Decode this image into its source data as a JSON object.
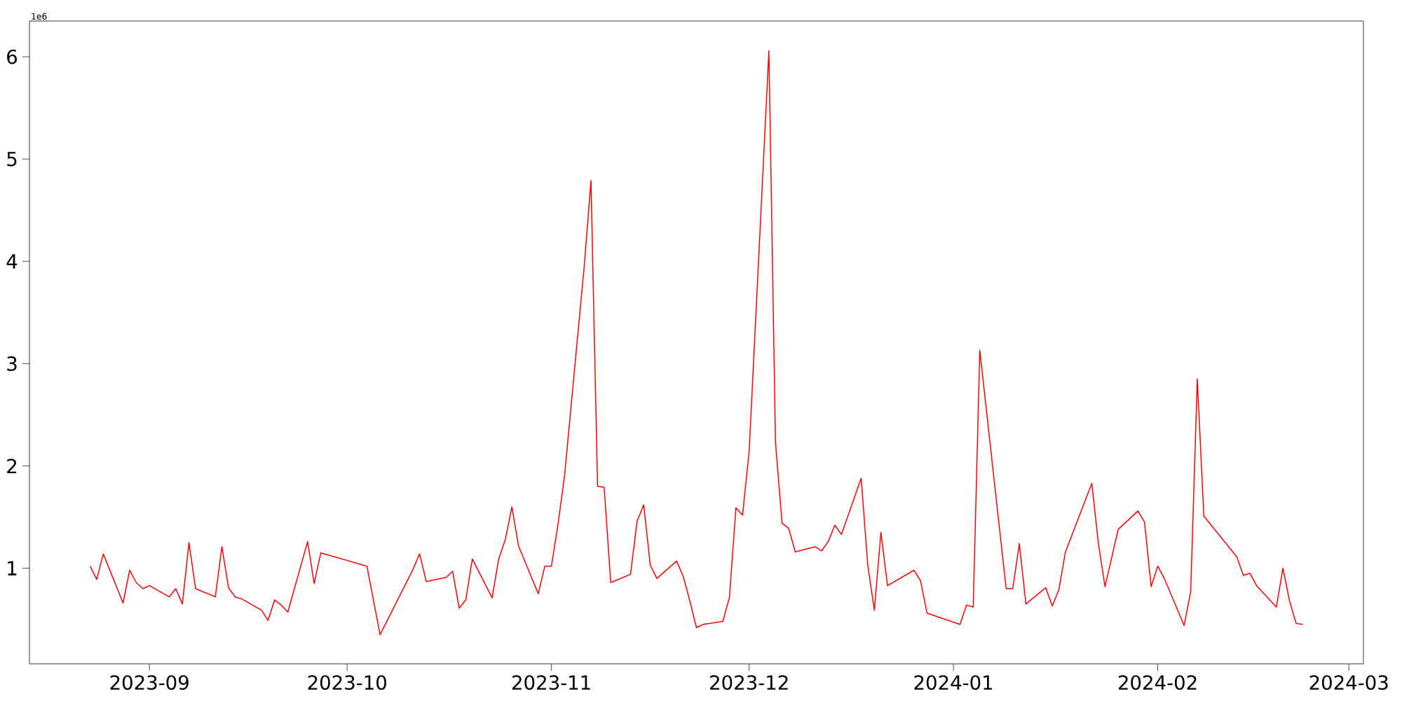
{
  "chart_data": {
    "type": "line",
    "x": [
      "2023-08-23",
      "2023-08-24",
      "2023-08-25",
      "2023-08-28",
      "2023-08-29",
      "2023-08-30",
      "2023-08-31",
      "2023-09-01",
      "2023-09-04",
      "2023-09-05",
      "2023-09-06",
      "2023-09-07",
      "2023-09-08",
      "2023-09-11",
      "2023-09-12",
      "2023-09-13",
      "2023-09-14",
      "2023-09-15",
      "2023-09-18",
      "2023-09-19",
      "2023-09-20",
      "2023-09-21",
      "2023-09-22",
      "2023-09-25",
      "2023-09-26",
      "2023-09-27",
      "2023-10-04",
      "2023-10-06",
      "2023-10-11",
      "2023-10-12",
      "2023-10-13",
      "2023-10-16",
      "2023-10-17",
      "2023-10-18",
      "2023-10-19",
      "2023-10-20",
      "2023-10-23",
      "2023-10-24",
      "2023-10-25",
      "2023-10-26",
      "2023-10-27",
      "2023-10-30",
      "2023-10-31",
      "2023-11-01",
      "2023-11-02",
      "2023-11-03",
      "2023-11-06",
      "2023-11-07",
      "2023-11-08",
      "2023-11-09",
      "2023-11-10",
      "2023-11-13",
      "2023-11-14",
      "2023-11-15",
      "2023-11-16",
      "2023-11-17",
      "2023-11-20",
      "2023-11-21",
      "2023-11-22",
      "2023-11-23",
      "2023-11-24",
      "2023-11-27",
      "2023-11-28",
      "2023-11-29",
      "2023-11-30",
      "2023-12-01",
      "2023-12-04",
      "2023-12-05",
      "2023-12-06",
      "2023-12-07",
      "2023-12-08",
      "2023-12-11",
      "2023-12-12",
      "2023-12-13",
      "2023-12-14",
      "2023-12-15",
      "2023-12-18",
      "2023-12-19",
      "2023-12-20",
      "2023-12-21",
      "2023-12-22",
      "2023-12-26",
      "2023-12-27",
      "2023-12-28",
      "2024-01-02",
      "2024-01-03",
      "2024-01-04",
      "2024-01-05",
      "2024-01-09",
      "2024-01-10",
      "2024-01-11",
      "2024-01-12",
      "2024-01-15",
      "2024-01-16",
      "2024-01-17",
      "2024-01-18",
      "2024-01-22",
      "2024-01-23",
      "2024-01-24",
      "2024-01-26",
      "2024-01-29",
      "2024-01-30",
      "2024-01-31",
      "2024-02-01",
      "2024-02-02",
      "2024-02-05",
      "2024-02-06",
      "2024-02-07",
      "2024-02-08",
      "2024-02-13",
      "2024-02-14",
      "2024-02-15",
      "2024-02-16",
      "2024-02-19",
      "2024-02-20",
      "2024-02-21",
      "2024-02-22",
      "2024-02-23"
    ],
    "series": [
      {
        "color": "#ff0000",
        "values": [
          1.02,
          0.89,
          1.14,
          0.66,
          0.98,
          0.86,
          0.8,
          0.83,
          0.72,
          0.8,
          0.65,
          1.25,
          0.8,
          0.72,
          1.21,
          0.81,
          0.72,
          0.7,
          0.59,
          0.49,
          0.69,
          0.64,
          0.57,
          1.26,
          0.85,
          1.15,
          1.02,
          0.35,
          0.99,
          1.14,
          0.87,
          0.91,
          0.97,
          0.61,
          0.69,
          1.09,
          0.71,
          1.09,
          1.28,
          1.6,
          1.22,
          0.75,
          1.02,
          1.02,
          1.43,
          1.91,
          3.97,
          4.79,
          1.8,
          1.79,
          0.86,
          0.94,
          1.46,
          1.62,
          1.03,
          0.9,
          1.07,
          0.92,
          0.68,
          0.42,
          0.45,
          0.48,
          0.71,
          1.59,
          1.52,
          2.14,
          6.06,
          2.23,
          1.44,
          1.39,
          1.16,
          1.21,
          1.17,
          1.26,
          1.42,
          1.33,
          1.88,
          1.03,
          0.59,
          1.35,
          0.83,
          0.98,
          0.88,
          0.56,
          0.45,
          0.64,
          0.62,
          3.13,
          0.8,
          0.8,
          1.24,
          0.65,
          0.81,
          0.63,
          0.79,
          1.16,
          1.83,
          1.24,
          0.82,
          1.38,
          1.56,
          1.45,
          0.82,
          1.02,
          0.9,
          0.44,
          0.77,
          2.85,
          1.51,
          1.11,
          0.93,
          0.95,
          0.83,
          0.62,
          1.0,
          0.68,
          0.46,
          0.45
        ]
      }
    ],
    "xlim": [
      "2023-08-13T19:00",
      "2024-03-03T05:00"
    ],
    "xticks": [
      "2023-09",
      "2023-10",
      "2023-11",
      "2023-12",
      "2024-01",
      "2024-02",
      "2024-03"
    ],
    "ylim": [
      0.065,
      6.35
    ],
    "yticks": [
      1,
      2,
      3,
      4,
      5,
      6
    ],
    "marker": "none",
    "line_style": "solid",
    "annotations": [
      "1e6"
    ]
  }
}
